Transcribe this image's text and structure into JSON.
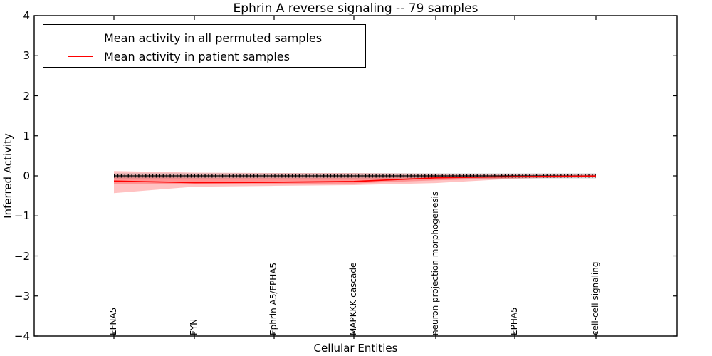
{
  "title": "Ephrin A  reverse signaling -- 79 samples",
  "legend": {
    "items": [
      {
        "label": "Mean activity in all permuted samples",
        "color": "#000000"
      },
      {
        "label": "Mean activity in patient samples",
        "color": "#ff0000"
      }
    ]
  },
  "chart_data": {
    "type": "line",
    "title": "Ephrin A  reverse signaling -- 79 samples",
    "xlabel": "Cellular Entities",
    "ylabel": "Inferred Activity",
    "ylim": [
      -4,
      4
    ],
    "yticks": [
      4,
      3,
      2,
      1,
      0,
      -1,
      -2,
      -3,
      -4
    ],
    "ytick_labels": [
      "4",
      "3",
      "2",
      "1",
      "0",
      "−1",
      "−2",
      "−3",
      "−4"
    ],
    "categories": [
      "EFNA5",
      "FYN",
      "Ephrin A5/EPHA5",
      "MAPKKK cascade",
      "neuron projection morphogenesis",
      "EPHA5",
      "cell-cell signaling"
    ],
    "grid": false,
    "legend_position": "upper left",
    "series": [
      {
        "name": "Mean activity in all permuted samples",
        "color": "#000000",
        "marker": "|",
        "values": [
          0,
          0,
          0,
          0,
          0,
          0,
          0
        ],
        "band": {
          "color": "rgba(110,110,110,0.25)",
          "upper": [
            0.065,
            0.065,
            0.065,
            0.065,
            0.065,
            0.065,
            0.065
          ],
          "lower": [
            -0.065,
            -0.065,
            -0.065,
            -0.065,
            -0.065,
            -0.065,
            -0.065
          ]
        }
      },
      {
        "name": "Mean activity in patient samples",
        "color": "#ff0000",
        "marker": "none",
        "values": [
          -0.13,
          -0.17,
          -0.16,
          -0.14,
          -0.05,
          -0.02,
          -0.005
        ],
        "band_color": "rgba(255,0,0,0.24)",
        "bands": [
          {
            "upper": [
              0.12,
              0.08,
              0.07,
              0.07,
              0.055,
              0.045,
              0.04
            ],
            "lower": [
              -0.2,
              -0.21,
              -0.2,
              -0.19,
              -0.11,
              -0.06,
              -0.035
            ]
          },
          {
            "upper": [
              -0.02,
              -0.045,
              -0.045,
              -0.045,
              -0.01,
              0.01,
              0.01
            ],
            "lower": [
              -0.43,
              -0.27,
              -0.25,
              -0.23,
              -0.18,
              -0.07,
              -0.03
            ]
          }
        ]
      }
    ]
  }
}
